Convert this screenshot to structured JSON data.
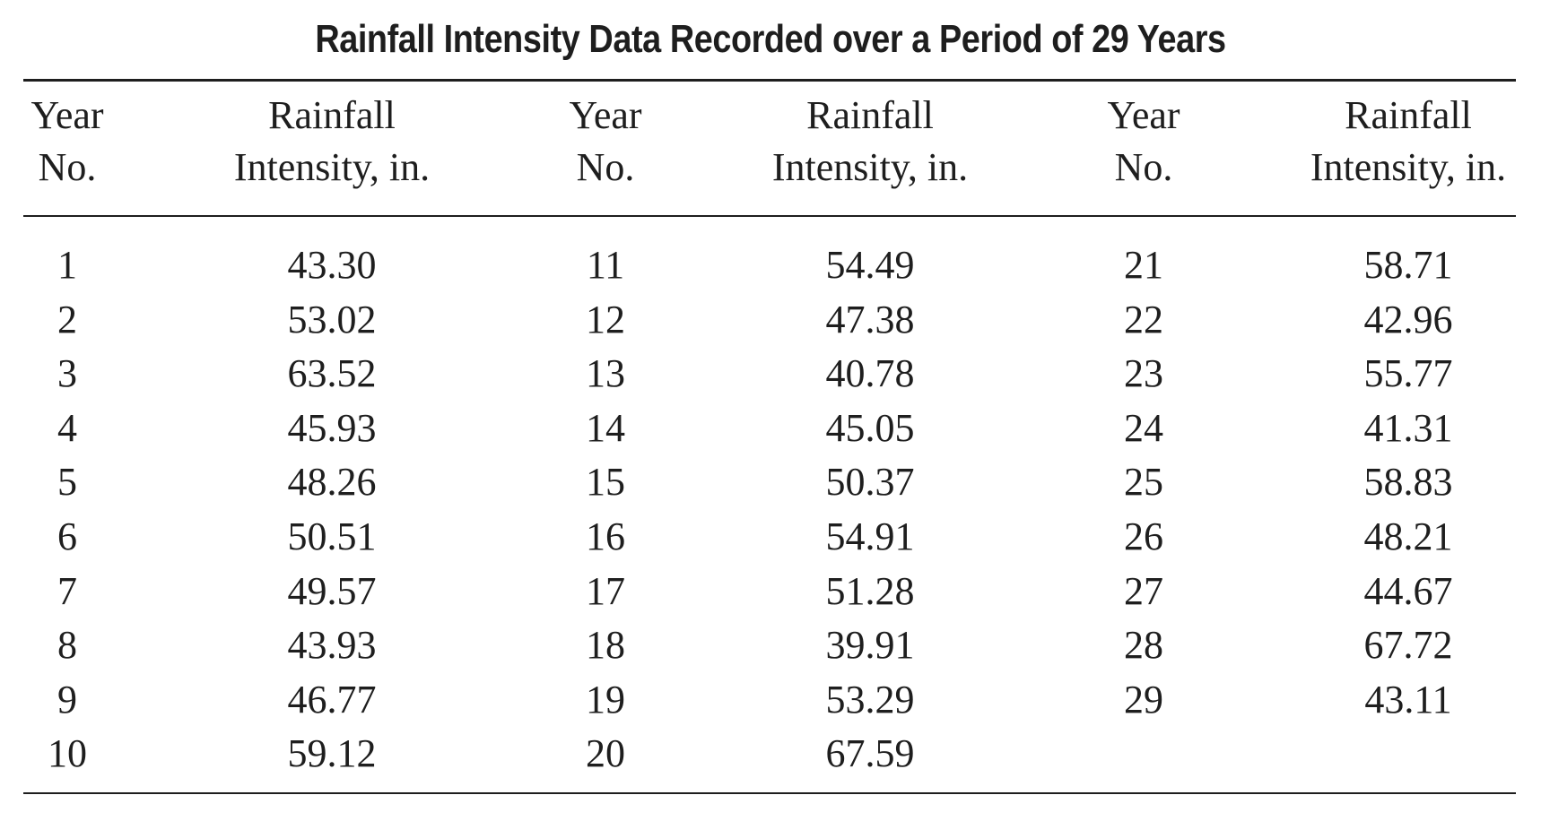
{
  "title": "Rainfall Intensity Data Recorded over a Period of 29 Years",
  "headers": {
    "year": "Year\nNo.",
    "rain": "Rainfall\nIntensity, in."
  },
  "groups": [
    {
      "years": [
        "1",
        "2",
        "3",
        "4",
        "5",
        "6",
        "7",
        "8",
        "9",
        "10"
      ],
      "intensities": [
        "43.30",
        "53.02",
        "63.52",
        "45.93",
        "48.26",
        "50.51",
        "49.57",
        "43.93",
        "46.77",
        "59.12"
      ]
    },
    {
      "years": [
        "11",
        "12",
        "13",
        "14",
        "15",
        "16",
        "17",
        "18",
        "19",
        "20"
      ],
      "intensities": [
        "54.49",
        "47.38",
        "40.78",
        "45.05",
        "50.37",
        "54.91",
        "51.28",
        "39.91",
        "53.29",
        "67.59"
      ]
    },
    {
      "years": [
        "21",
        "22",
        "23",
        "24",
        "25",
        "26",
        "27",
        "28",
        "29"
      ],
      "intensities": [
        "58.71",
        "42.96",
        "55.77",
        "41.31",
        "58.83",
        "48.21",
        "44.67",
        "67.72",
        "43.11"
      ]
    }
  ]
}
